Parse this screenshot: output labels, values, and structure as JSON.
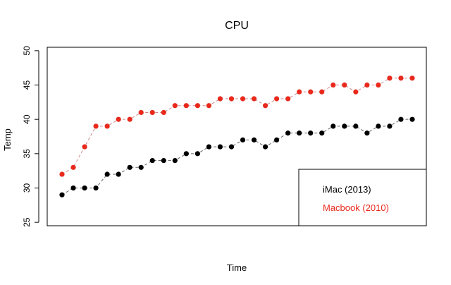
{
  "chart_data": {
    "type": "line",
    "title": "CPU",
    "xlabel": "Time",
    "ylabel": "Temp",
    "ylim": [
      24.5,
      50.5
    ],
    "yticks": [
      25,
      30,
      35,
      40,
      45,
      50
    ],
    "x": [
      1,
      2,
      3,
      4,
      5,
      6,
      7,
      8,
      9,
      10,
      11,
      12,
      13,
      14,
      15,
      16,
      17,
      18,
      19,
      20,
      21,
      22,
      23,
      24,
      25,
      26,
      27,
      28,
      29,
      30,
      31,
      32
    ],
    "series": [
      {
        "name": "iMac (2013)",
        "color": "#000000",
        "values": [
          29,
          30,
          30,
          30,
          32,
          32,
          33,
          33,
          34,
          34,
          34,
          35,
          35,
          36,
          36,
          36,
          37,
          37,
          36,
          37,
          38,
          38,
          38,
          38,
          39,
          39,
          39,
          38,
          39,
          39,
          40,
          40
        ]
      },
      {
        "name": "Macbook (2010)",
        "color": "#e8291c",
        "values": [
          32,
          33,
          36,
          39,
          39,
          40,
          40,
          41,
          41,
          41,
          42,
          42,
          42,
          42,
          43,
          43,
          43,
          43,
          42,
          43,
          43,
          44,
          44,
          44,
          45,
          45,
          44,
          45,
          45,
          46,
          46,
          46
        ]
      }
    ],
    "grid": false,
    "legend_position": "bottom-right"
  }
}
